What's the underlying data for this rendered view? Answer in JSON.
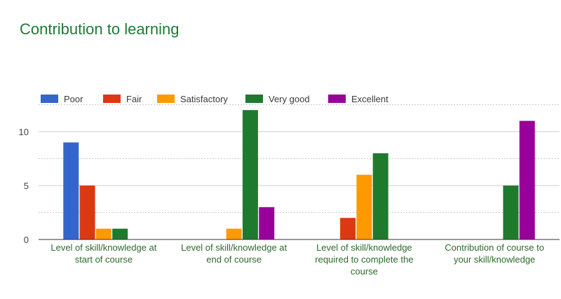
{
  "chart_data": {
    "type": "bar",
    "title": "Contribution to learning",
    "categories": [
      [
        "Level of skill/knowledge at",
        "start of course"
      ],
      [
        "Level of skill/knowledge at",
        "end of course"
      ],
      [
        "Level of skill/knowledge",
        "required to complete the",
        "course"
      ],
      [
        "Contribution of course to",
        "your skill/knowledge"
      ]
    ],
    "series": [
      {
        "name": "Poor",
        "color": "#3366cc",
        "values": [
          9,
          0,
          0,
          0
        ]
      },
      {
        "name": "Fair",
        "color": "#dc3912",
        "values": [
          5,
          0,
          2,
          0
        ]
      },
      {
        "name": "Satisfactory",
        "color": "#ff9900",
        "values": [
          1,
          1,
          6,
          0
        ]
      },
      {
        "name": "Very good",
        "color": "#1f7a2e",
        "values": [
          1,
          12,
          8,
          5
        ]
      },
      {
        "name": "Excellent",
        "color": "#990099",
        "values": [
          0,
          3,
          0,
          11
        ]
      }
    ],
    "ylim": [
      0,
      12.5
    ],
    "yticks": [
      0,
      5,
      10
    ],
    "grid": true,
    "legend": "top"
  }
}
